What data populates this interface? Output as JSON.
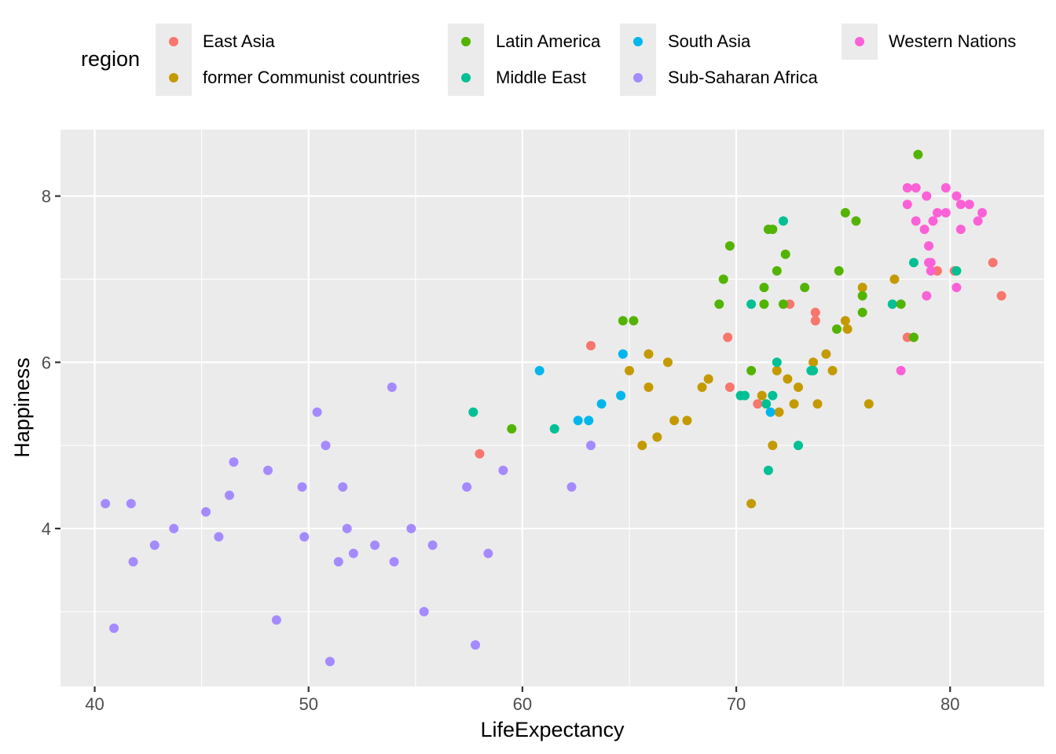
{
  "chart_data": {
    "type": "scatter",
    "xlabel": "LifeExpectancy",
    "ylabel": "Happiness",
    "xlim": [
      38.4,
      84.4
    ],
    "ylim": [
      2.1,
      8.8
    ],
    "x_ticks": [
      40,
      50,
      60,
      70,
      80
    ],
    "y_ticks": [
      4,
      6,
      8
    ],
    "grid": true,
    "legend_position": "top",
    "legend": {
      "title": "region",
      "entries": [
        {
          "name": "East Asia",
          "color": "#F8766D"
        },
        {
          "name": "former Communist countries",
          "color": "#C49A00"
        },
        {
          "name": "Latin America",
          "color": "#53B400"
        },
        {
          "name": "Middle East",
          "color": "#00C094"
        },
        {
          "name": "South Asia",
          "color": "#00B6EB"
        },
        {
          "name": "Sub-Saharan Africa",
          "color": "#A58AFF"
        },
        {
          "name": "Western Nations",
          "color": "#FB61D7"
        }
      ]
    },
    "series": [
      {
        "name": "East Asia",
        "color": "#F8766D",
        "points": [
          [
            58.0,
            4.9
          ],
          [
            63.2,
            6.2
          ],
          [
            69.6,
            6.3
          ],
          [
            69.7,
            5.7
          ],
          [
            71.0,
            5.5
          ],
          [
            72.5,
            6.7
          ],
          [
            73.7,
            6.6
          ],
          [
            73.7,
            6.5
          ],
          [
            78.0,
            6.3
          ],
          [
            79.4,
            7.1
          ],
          [
            80.2,
            7.1
          ],
          [
            82.0,
            7.2
          ],
          [
            82.4,
            6.8
          ]
        ]
      },
      {
        "name": "former Communist countries",
        "color": "#C49A00",
        "points": [
          [
            65.0,
            5.9
          ],
          [
            65.6,
            5.0
          ],
          [
            65.9,
            5.7
          ],
          [
            65.9,
            6.1
          ],
          [
            66.3,
            5.1
          ],
          [
            66.8,
            6.0
          ],
          [
            67.1,
            5.3
          ],
          [
            67.7,
            5.3
          ],
          [
            68.4,
            5.7
          ],
          [
            68.7,
            5.8
          ],
          [
            70.7,
            4.3
          ],
          [
            71.2,
            5.6
          ],
          [
            71.7,
            5.0
          ],
          [
            71.9,
            5.9
          ],
          [
            72.0,
            5.4
          ],
          [
            72.4,
            5.8
          ],
          [
            72.7,
            5.5
          ],
          [
            72.9,
            5.7
          ],
          [
            73.6,
            6.0
          ],
          [
            73.8,
            5.5
          ],
          [
            74.2,
            6.1
          ],
          [
            74.5,
            5.9
          ],
          [
            75.1,
            6.5
          ],
          [
            75.2,
            6.4
          ],
          [
            75.9,
            6.9
          ],
          [
            76.2,
            5.5
          ],
          [
            77.4,
            7.0
          ]
        ]
      },
      {
        "name": "Latin America",
        "color": "#53B400",
        "points": [
          [
            59.5,
            5.2
          ],
          [
            64.7,
            6.5
          ],
          [
            65.2,
            6.5
          ],
          [
            69.2,
            6.7
          ],
          [
            69.4,
            7.0
          ],
          [
            69.7,
            7.4
          ],
          [
            70.7,
            5.9
          ],
          [
            71.3,
            6.7
          ],
          [
            71.3,
            6.9
          ],
          [
            71.5,
            7.6
          ],
          [
            71.7,
            7.6
          ],
          [
            71.9,
            7.1
          ],
          [
            72.2,
            6.7
          ],
          [
            72.3,
            7.3
          ],
          [
            73.2,
            6.9
          ],
          [
            74.8,
            7.1
          ],
          [
            74.7,
            6.4
          ],
          [
            75.1,
            7.8
          ],
          [
            75.6,
            7.7
          ],
          [
            75.9,
            6.8
          ],
          [
            75.9,
            6.6
          ],
          [
            77.7,
            6.7
          ],
          [
            78.3,
            6.3
          ],
          [
            78.5,
            8.5
          ]
        ]
      },
      {
        "name": "Middle East",
        "color": "#00C094",
        "points": [
          [
            57.7,
            5.4
          ],
          [
            61.5,
            5.2
          ],
          [
            70.2,
            5.6
          ],
          [
            70.4,
            5.6
          ],
          [
            70.7,
            6.7
          ],
          [
            71.4,
            5.5
          ],
          [
            71.5,
            4.7
          ],
          [
            71.7,
            5.6
          ],
          [
            71.9,
            6.0
          ],
          [
            72.2,
            7.7
          ],
          [
            72.9,
            5.0
          ],
          [
            73.5,
            5.9
          ],
          [
            73.6,
            5.9
          ],
          [
            77.3,
            6.7
          ],
          [
            78.3,
            7.2
          ],
          [
            80.3,
            7.1
          ]
        ]
      },
      {
        "name": "South Asia",
        "color": "#00B6EB",
        "points": [
          [
            60.8,
            5.9
          ],
          [
            62.6,
            5.3
          ],
          [
            63.1,
            5.3
          ],
          [
            63.7,
            5.5
          ],
          [
            64.6,
            5.6
          ],
          [
            64.7,
            6.1
          ],
          [
            71.6,
            5.4
          ]
        ]
      },
      {
        "name": "Sub-Saharan Africa",
        "color": "#A58AFF",
        "points": [
          [
            40.5,
            4.3
          ],
          [
            40.9,
            2.8
          ],
          [
            41.7,
            4.3
          ],
          [
            41.8,
            3.6
          ],
          [
            42.8,
            3.8
          ],
          [
            43.7,
            4.0
          ],
          [
            45.2,
            4.2
          ],
          [
            45.8,
            3.9
          ],
          [
            46.3,
            4.4
          ],
          [
            46.5,
            4.8
          ],
          [
            48.1,
            4.7
          ],
          [
            48.5,
            2.9
          ],
          [
            49.7,
            4.5
          ],
          [
            49.8,
            3.9
          ],
          [
            50.4,
            5.4
          ],
          [
            50.8,
            5.0
          ],
          [
            51.0,
            2.4
          ],
          [
            51.4,
            3.6
          ],
          [
            51.6,
            4.5
          ],
          [
            51.8,
            4.0
          ],
          [
            52.1,
            3.7
          ],
          [
            53.1,
            3.8
          ],
          [
            53.9,
            5.7
          ],
          [
            54.0,
            3.6
          ],
          [
            54.8,
            4.0
          ],
          [
            55.4,
            3.0
          ],
          [
            55.8,
            3.8
          ],
          [
            57.4,
            4.5
          ],
          [
            57.8,
            2.6
          ],
          [
            58.4,
            3.7
          ],
          [
            59.1,
            4.7
          ],
          [
            62.3,
            4.5
          ],
          [
            63.2,
            5.0
          ]
        ]
      },
      {
        "name": "Western Nations",
        "color": "#FB61D7",
        "points": [
          [
            77.7,
            5.9
          ],
          [
            78.0,
            8.1
          ],
          [
            78.0,
            7.9
          ],
          [
            78.4,
            8.1
          ],
          [
            78.4,
            7.7
          ],
          [
            78.8,
            7.6
          ],
          [
            78.9,
            6.8
          ],
          [
            78.9,
            8.0
          ],
          [
            79.0,
            7.4
          ],
          [
            79.0,
            7.2
          ],
          [
            79.1,
            7.2
          ],
          [
            79.1,
            7.1
          ],
          [
            79.2,
            7.7
          ],
          [
            79.4,
            7.8
          ],
          [
            79.8,
            8.1
          ],
          [
            79.8,
            7.8
          ],
          [
            80.3,
            8.0
          ],
          [
            80.3,
            6.9
          ],
          [
            80.5,
            7.9
          ],
          [
            80.5,
            7.6
          ],
          [
            80.9,
            7.9
          ],
          [
            81.3,
            7.7
          ],
          [
            81.5,
            7.8
          ]
        ]
      }
    ]
  }
}
